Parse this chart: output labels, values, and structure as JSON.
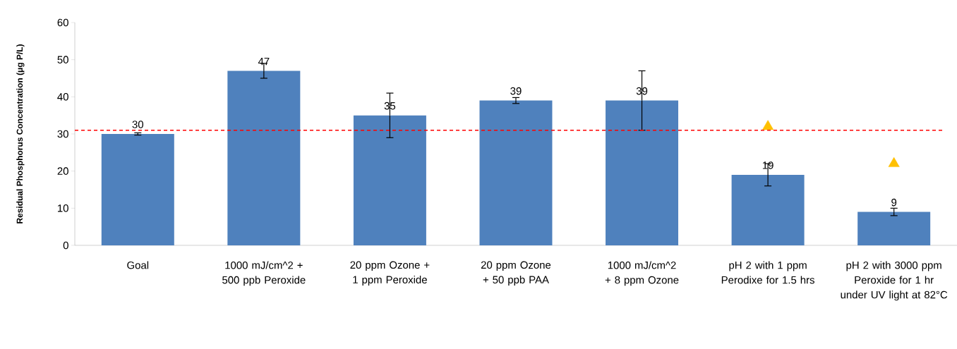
{
  "chart_data": {
    "type": "bar",
    "ylabel": "Residual Phosphorus Concentration (μg P/L)",
    "categories": [
      "Goal",
      "1000 mJ/cm^2 + 500 ppb Peroxide",
      "20 ppm Ozone + 1 ppm Peroxide",
      "20 ppm Ozone + 50 ppb PAA",
      "1000 mJ/cm^2 + 8 ppm Ozone",
      "pH 2 with 1 ppm Perodixe for 1.5 hrs",
      "pH 2 with 3000 ppm Peroxide for 1 hr under UV light at 82°C"
    ],
    "series": [
      {
        "color": "#4f81bd",
        "values": [
          30,
          47,
          35,
          39,
          39,
          19,
          9
        ],
        "value_labels": [
          "30",
          "47",
          "35",
          "39",
          "39",
          "19",
          "9"
        ],
        "errors": [
          0.3,
          2,
          6,
          0.8,
          8,
          3,
          1
        ]
      },
      {
        "type": "scatter",
        "color": "#ffc000",
        "marker": "triangle",
        "values": [
          null,
          null,
          null,
          null,
          null,
          32,
          22
        ]
      }
    ],
    "ylim": [
      0,
      60
    ],
    "yticks": [
      0,
      10,
      20,
      30,
      40,
      50,
      60
    ],
    "ref_lines": [
      {
        "axis": "y",
        "value": 31,
        "color": "#ff0000",
        "line_style": "dashed"
      }
    ],
    "grid": false,
    "legend": false
  }
}
